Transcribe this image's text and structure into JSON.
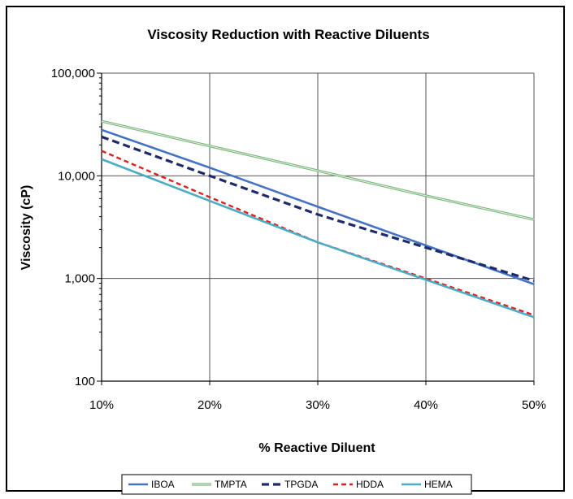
{
  "chart_data": {
    "type": "line",
    "title": "Viscosity Reduction with Reactive Diluents",
    "xlabel": "% Reactive Diluent",
    "ylabel": "Viscosity (cP)",
    "xlim": [
      10,
      50
    ],
    "ylim": [
      100,
      100000
    ],
    "yscale": "log",
    "grid": true,
    "legend_position": "bottom",
    "x_ticks": [
      10,
      20,
      30,
      40,
      50
    ],
    "x_tick_labels": [
      "10%",
      "20%",
      "30%",
      "40%",
      "50%"
    ],
    "y_ticks": [
      100,
      1000,
      10000,
      100000
    ],
    "y_tick_labels": [
      "100",
      "1,000",
      "10,000",
      "100,000"
    ],
    "series": [
      {
        "name": "IBOA",
        "color": "#4472C4",
        "style": "solid",
        "x": [
          10,
          20,
          30,
          40,
          50
        ],
        "values": [
          28000,
          12000,
          5000,
          2100,
          880
        ]
      },
      {
        "name": "TMPTA",
        "color": "#7CB77C",
        "style": "double",
        "x": [
          10,
          20,
          30,
          40,
          50
        ],
        "values": [
          34000,
          19500,
          11200,
          6400,
          3750
        ]
      },
      {
        "name": "TPGDA",
        "color": "#1F2A6B",
        "style": "dashed",
        "x": [
          10,
          20,
          30,
          40,
          50
        ],
        "values": [
          24000,
          10000,
          4200,
          2000,
          950
        ]
      },
      {
        "name": "HDDA",
        "color": "#E02020",
        "style": "dashed",
        "x": [
          10,
          20,
          30,
          40,
          50
        ],
        "values": [
          17500,
          6200,
          2250,
          1000,
          440
        ]
      },
      {
        "name": "HEMA",
        "color": "#4BACC6",
        "style": "solid",
        "x": [
          10,
          20,
          30,
          40,
          50
        ],
        "values": [
          14500,
          5700,
          2250,
          970,
          420
        ]
      }
    ]
  }
}
